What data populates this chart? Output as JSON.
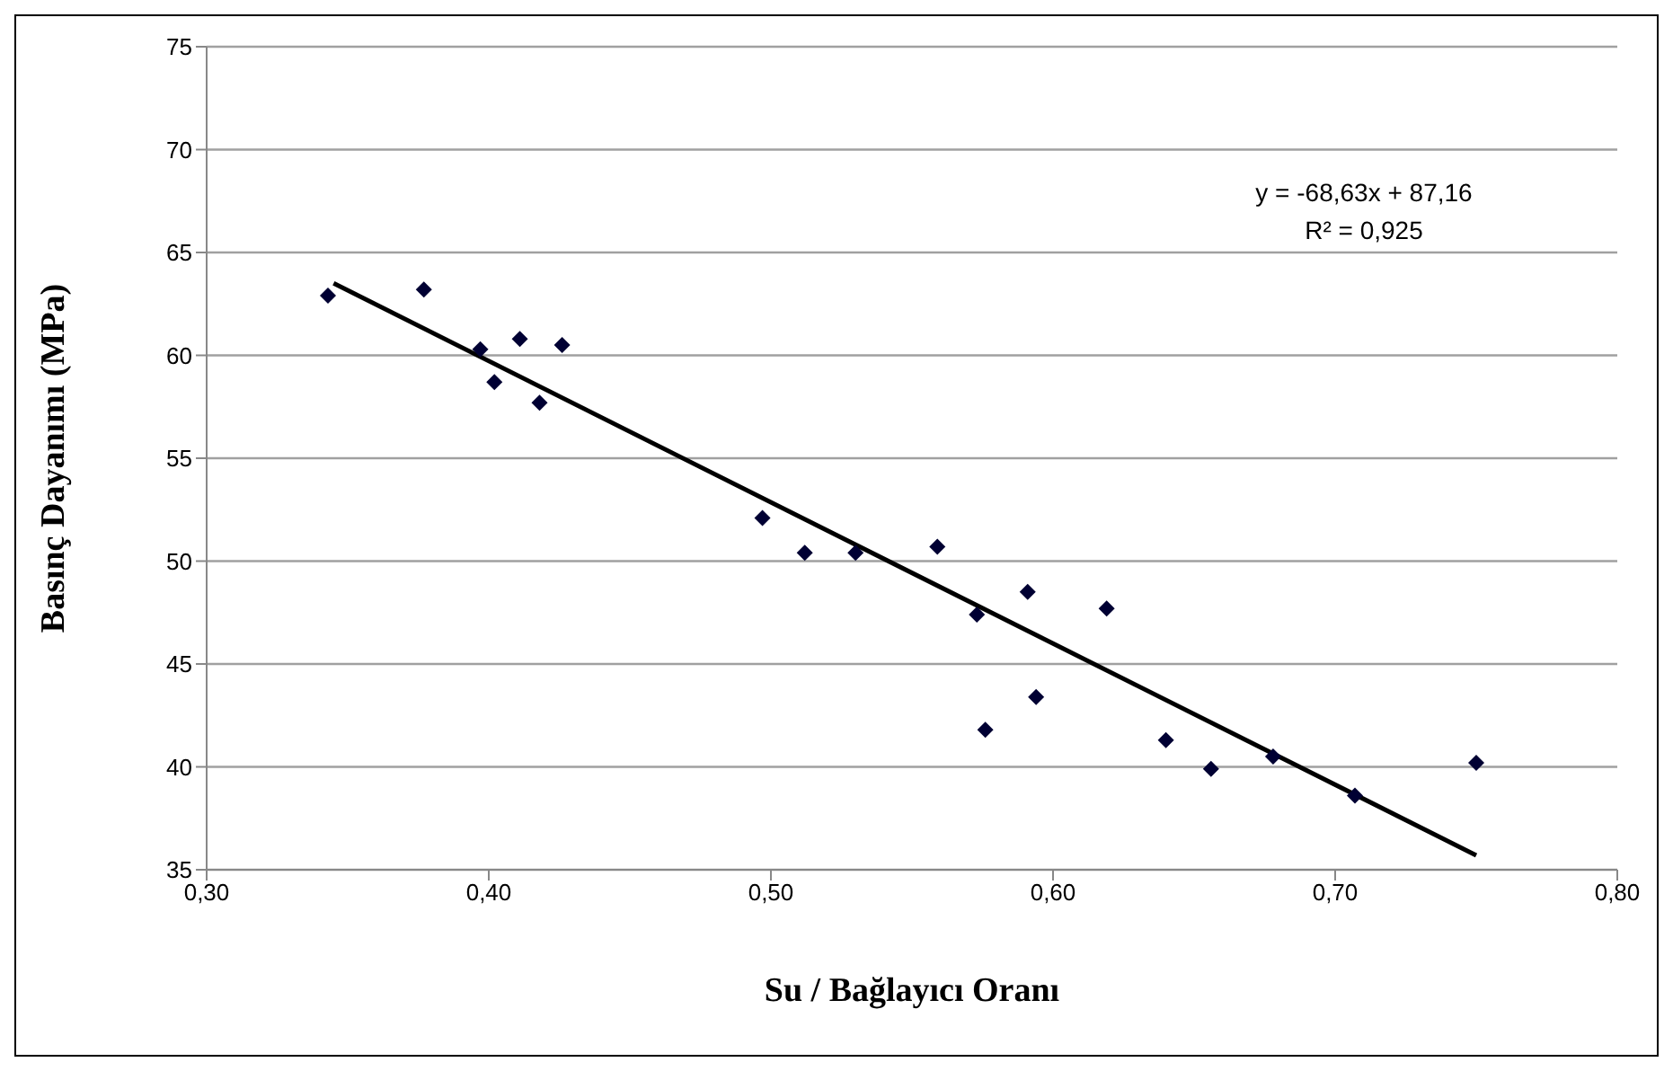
{
  "chart_data": {
    "type": "scatter",
    "xlabel": "Su / Bağlayıcı Oranı",
    "ylabel": "Basınç Dayanımı (MPa)",
    "annotations": [
      "y = -68,63x + 87,16",
      "R² = 0,925"
    ],
    "series": [
      {
        "color": "#000033",
        "marker": "diamond",
        "x": [
          0.343,
          0.377,
          0.397,
          0.402,
          0.411,
          0.418,
          0.426,
          0.497,
          0.512,
          0.53,
          0.559,
          0.573,
          0.576,
          0.591,
          0.594,
          0.619,
          0.64,
          0.656,
          0.678,
          0.707,
          0.75
        ],
        "values": [
          62.9,
          63.2,
          60.3,
          58.7,
          60.8,
          57.7,
          60.5,
          52.1,
          50.4,
          50.4,
          50.7,
          47.4,
          41.8,
          48.5,
          43.4,
          47.7,
          41.3,
          39.9,
          40.5,
          38.6,
          40.2
        ]
      },
      {
        "type": "line",
        "color": "#000000",
        "marker": "none",
        "x": [
          0.345,
          0.75
        ],
        "values": [
          63.5,
          35.7
        ]
      }
    ],
    "xlim": [
      0.3,
      0.8
    ],
    "xticks": [
      {
        "value": 0.3,
        "label": "0,30"
      },
      {
        "value": 0.4,
        "label": "0,40"
      },
      {
        "value": 0.5,
        "label": "0,50"
      },
      {
        "value": 0.6,
        "label": "0,60"
      },
      {
        "value": 0.7,
        "label": "0,70"
      },
      {
        "value": 0.8,
        "label": "0,80"
      }
    ],
    "ylim": [
      35,
      75
    ],
    "yticks": [
      35,
      40,
      45,
      50,
      55,
      60,
      65,
      70,
      75
    ],
    "grid": "y"
  }
}
